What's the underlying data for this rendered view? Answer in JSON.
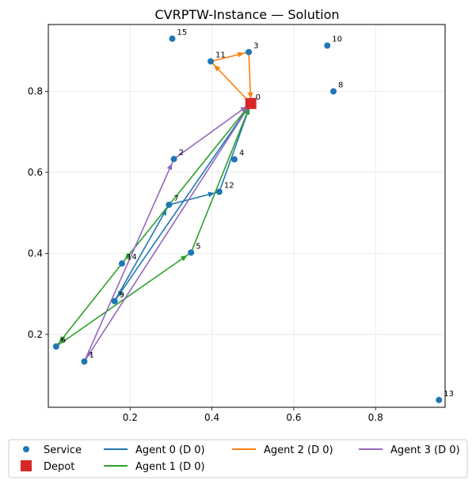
{
  "chart_data": {
    "type": "scatter",
    "title": "CVRPTW-Instance — Solution",
    "xlabel": "",
    "ylabel": "",
    "xlim": [
      0.0,
      0.97
    ],
    "ylim": [
      0.02,
      0.965
    ],
    "xticks": [
      0.2,
      0.4,
      0.6,
      0.8
    ],
    "xtick_labels": [
      "0.2",
      "0.4",
      "0.6",
      "0.8"
    ],
    "yticks": [
      0.2,
      0.4,
      0.6,
      0.8
    ],
    "ytick_labels": [
      "0.2",
      "0.4",
      "0.6",
      "0.8"
    ],
    "grid": true,
    "legend_position": "bottom",
    "service_color": "#1f77b4",
    "depot_color": "#d62728",
    "nodes": [
      {
        "id": "0",
        "x": 0.495,
        "y": 0.77
      },
      {
        "id": "1",
        "x": 0.088,
        "y": 0.133
      },
      {
        "id": "2",
        "x": 0.307,
        "y": 0.633
      },
      {
        "id": "3",
        "x": 0.49,
        "y": 0.897
      },
      {
        "id": "4",
        "x": 0.455,
        "y": 0.632
      },
      {
        "id": "5",
        "x": 0.349,
        "y": 0.402
      },
      {
        "id": "6",
        "x": 0.019,
        "y": 0.17
      },
      {
        "id": "7",
        "x": 0.295,
        "y": 0.52
      },
      {
        "id": "8",
        "x": 0.697,
        "y": 0.8
      },
      {
        "id": "9",
        "x": 0.162,
        "y": 0.282
      },
      {
        "id": "10",
        "x": 0.682,
        "y": 0.913
      },
      {
        "id": "11",
        "x": 0.397,
        "y": 0.874
      },
      {
        "id": "12",
        "x": 0.418,
        "y": 0.552
      },
      {
        "id": "13",
        "x": 0.955,
        "y": 0.038
      },
      {
        "id": "14",
        "x": 0.18,
        "y": 0.375
      },
      {
        "id": "15",
        "x": 0.303,
        "y": 0.93
      }
    ],
    "depot": {
      "x": 0.495,
      "y": 0.77
    },
    "series": [
      {
        "name": "Agent 0 (D 0)",
        "color": "#1f77b4",
        "route": [
          "0",
          "9",
          "7",
          "12",
          "0"
        ]
      },
      {
        "name": "Agent 1 (D 0)",
        "color": "#2ca02c",
        "route": [
          "0",
          "14",
          "6",
          "5",
          "0"
        ]
      },
      {
        "name": "Agent 2 (D 0)",
        "color": "#ff7f0e",
        "route": [
          "0",
          "11",
          "3",
          "0"
        ]
      },
      {
        "name": "Agent 3 (D 0)",
        "color": "#9467bd",
        "route": [
          "0",
          "1",
          "2",
          "0"
        ]
      }
    ],
    "legend": {
      "service_label": "Service",
      "depot_label": "Depot"
    }
  }
}
